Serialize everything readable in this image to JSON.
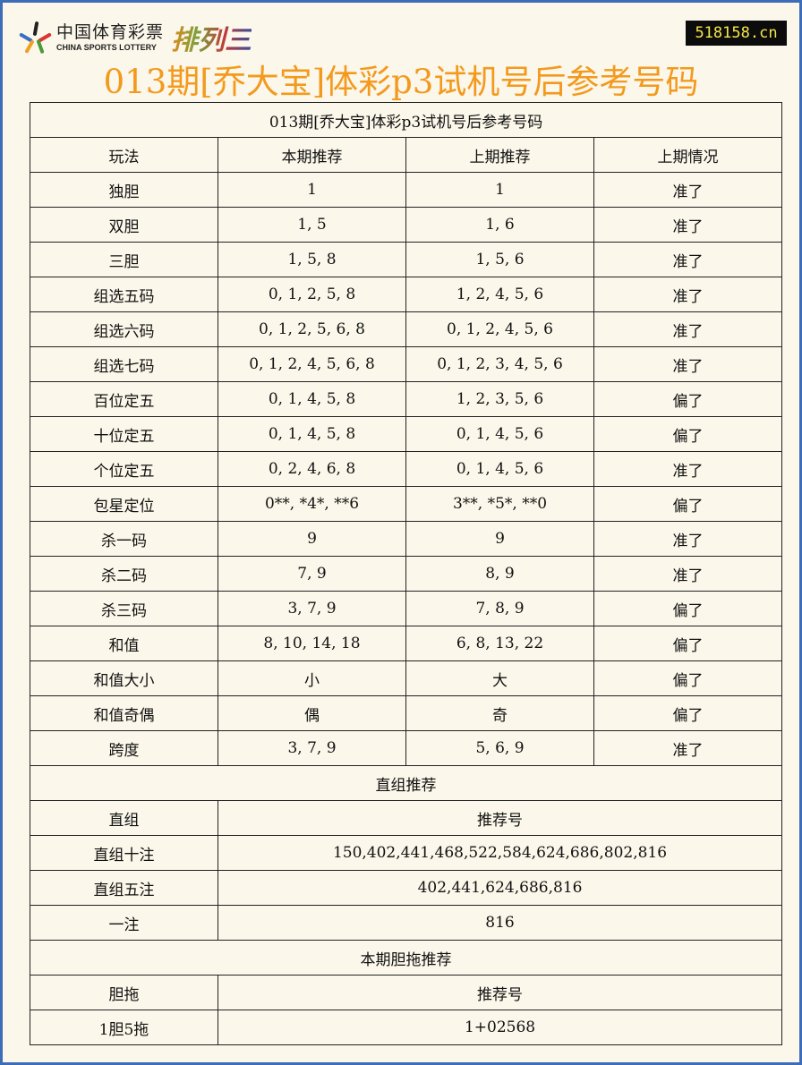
{
  "header": {
    "logo_cn": "中国体育彩票",
    "logo_en": "CHINA SPORTS LOTTERY",
    "logo_game": "排列三",
    "site": "518158.cn",
    "title": "013期[乔大宝]体彩p3试机号后参考号码"
  },
  "colors": {
    "title": "#f39a1e",
    "frame": "#3d6cb8",
    "site_text": "#f5e64a"
  },
  "table": {
    "caption": "013期[乔大宝]体彩p3试机号后参考号码",
    "columns": [
      "玩法",
      "本期推荐",
      "上期推荐",
      "上期情况"
    ],
    "rows": [
      [
        "独胆",
        "1",
        "1",
        "准了"
      ],
      [
        "双胆",
        "1, 5",
        "1, 6",
        "准了"
      ],
      [
        "三胆",
        "1, 5, 8",
        "1, 5, 6",
        "准了"
      ],
      [
        "组选五码",
        "0, 1, 2, 5, 8",
        "1, 2, 4, 5, 6",
        "准了"
      ],
      [
        "组选六码",
        "0, 1, 2, 5, 6, 8",
        "0, 1, 2, 4, 5, 6",
        "准了"
      ],
      [
        "组选七码",
        "0, 1, 2, 4, 5, 6, 8",
        "0, 1, 2, 3, 4, 5, 6",
        "准了"
      ],
      [
        "百位定五",
        "0, 1, 4, 5, 8",
        "1, 2, 3, 5, 6",
        "偏了"
      ],
      [
        "十位定五",
        "0, 1, 4, 5, 8",
        "0, 1, 4, 5, 6",
        "偏了"
      ],
      [
        "个位定五",
        "0, 2, 4, 6, 8",
        "0, 1, 4, 5, 6",
        "准了"
      ],
      [
        "包星定位",
        "0**, *4*, **6",
        "3**, *5*, **0",
        "偏了"
      ],
      [
        "杀一码",
        "9",
        "9",
        "准了"
      ],
      [
        "杀二码",
        "7, 9",
        "8, 9",
        "准了"
      ],
      [
        "杀三码",
        "3, 7, 9",
        "7, 8, 9",
        "偏了"
      ],
      [
        "和值",
        "8, 10, 14, 18",
        "6, 8, 13, 22",
        "偏了"
      ],
      [
        "和值大小",
        "小",
        "大",
        "偏了"
      ],
      [
        "和值奇偶",
        "偶",
        "奇",
        "偏了"
      ],
      [
        "跨度",
        "3, 7, 9",
        "5, 6, 9",
        "准了"
      ]
    ],
    "zhizu": {
      "section_title": "直组推荐",
      "header": [
        "直组",
        "推荐号"
      ],
      "rows": [
        [
          "直组十注",
          "150,402,441,468,522,584,624,686,802,816"
        ],
        [
          "直组五注",
          "402,441,624,686,816"
        ],
        [
          "一注",
          "816"
        ]
      ]
    },
    "dantuo": {
      "section_title": "本期胆拖推荐",
      "header": [
        "胆拖",
        "推荐号"
      ],
      "rows": [
        [
          "1胆5拖",
          "1+02568"
        ]
      ]
    }
  }
}
